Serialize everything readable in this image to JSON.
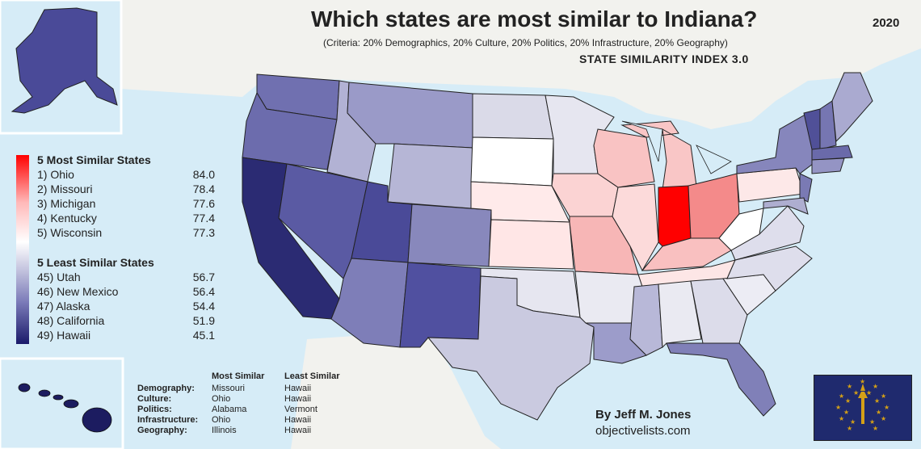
{
  "header": {
    "title": "Which states are most similar to Indiana?",
    "year": "2020",
    "subtitle": "(Criteria: 20% Demographics, 20% Culture, 20% Politics, 20% Infrastructure, 20% Geography)",
    "index_name": "STATE SIMILARITY INDEX 3.0"
  },
  "legend": {
    "most_heading": "5 Most Similar States",
    "most": [
      {
        "label": "1) Ohio",
        "value": "84.0"
      },
      {
        "label": "2) Missouri",
        "value": "78.4"
      },
      {
        "label": "3) Michigan",
        "value": "77.6"
      },
      {
        "label": "4) Kentucky",
        "value": "77.4"
      },
      {
        "label": "5) Wisconsin",
        "value": "77.3"
      }
    ],
    "least_heading": "5 Least Similar States",
    "least": [
      {
        "label": "45) Utah",
        "value": "56.7"
      },
      {
        "label": "46) New Mexico",
        "value": "56.4"
      },
      {
        "label": "47) Alaska",
        "value": "54.4"
      },
      {
        "label": "48) California",
        "value": "51.9"
      },
      {
        "label": "49) Hawaii",
        "value": "45.1"
      }
    ]
  },
  "categories": {
    "col_most": "Most Similar",
    "col_least": "Least Similar",
    "rows": [
      {
        "name": "Demography:",
        "most": "Missouri",
        "least": "Hawaii"
      },
      {
        "name": "Culture:",
        "most": "Ohio",
        "least": "Hawaii"
      },
      {
        "name": "Politics:",
        "most": "Alabama",
        "least": "Vermont"
      },
      {
        "name": "Infrastructure:",
        "most": "Ohio",
        "least": "Hawaii"
      },
      {
        "name": "Geography:",
        "most": "Illinois",
        "least": "Hawaii"
      }
    ]
  },
  "credits": {
    "author": "By Jeff M. Jones",
    "site": "objectivelists.com"
  },
  "colors": {
    "ocean": "#d6ecf7",
    "land": "#f2f2ee",
    "indiana": "#ff0000",
    "most_similar": "#f48a8a",
    "similar": "#f9c9c9",
    "neutral": "#ffffff",
    "dissimilar": "#8a8ac0",
    "least_similar": "#2a2a72"
  }
}
